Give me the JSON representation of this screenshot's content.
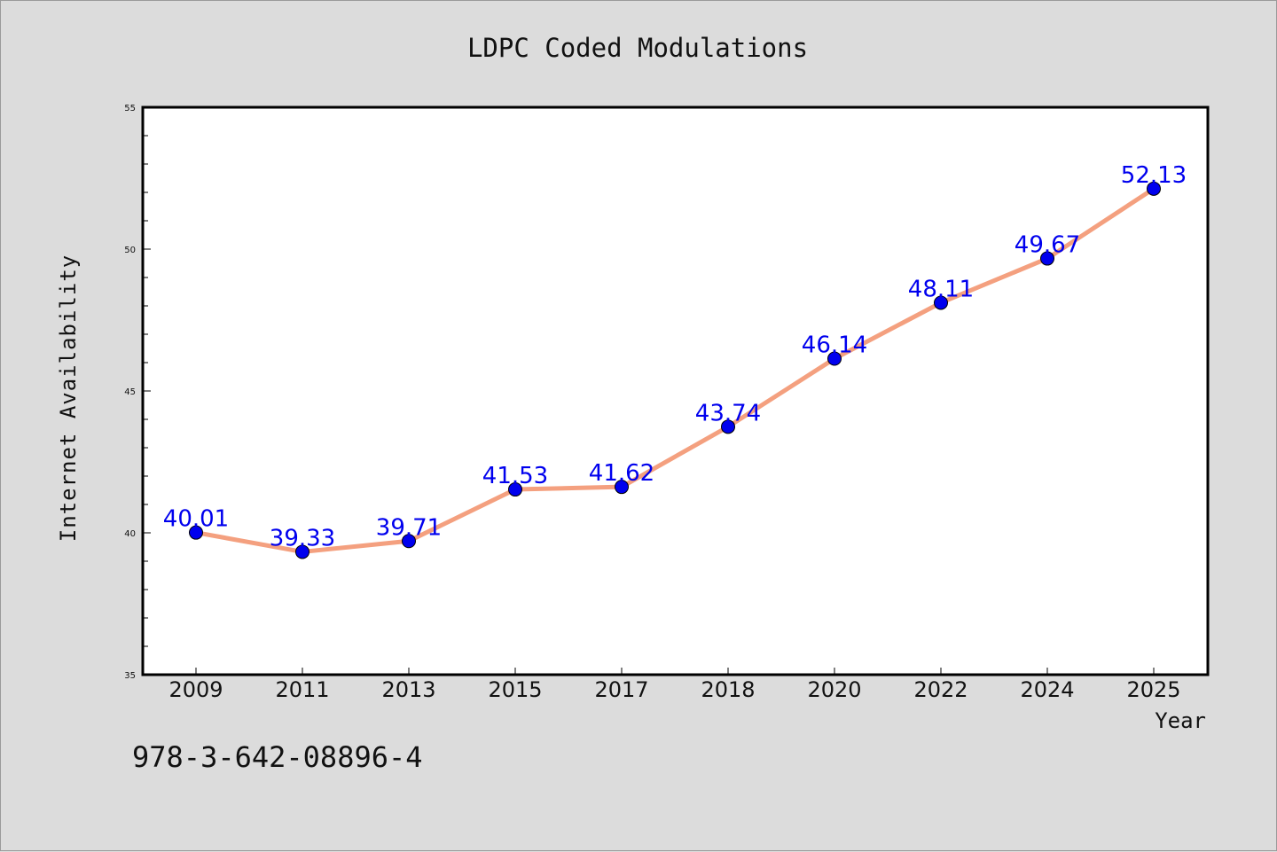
{
  "chart_data": {
    "type": "line",
    "title": "LDPC Coded Modulations",
    "xlabel": "Year",
    "ylabel": "Internet Availability",
    "categories": [
      "2009",
      "2011",
      "2013",
      "2015",
      "2017",
      "2018",
      "2020",
      "2022",
      "2024",
      "2025"
    ],
    "series": [
      {
        "values": [
          40.01,
          39.33,
          39.71,
          41.53,
          41.62,
          43.74,
          46.14,
          48.11,
          49.67,
          52.13
        ],
        "data_labels": [
          "40.01",
          "39.33",
          "39.71",
          "41.53",
          "41.62",
          "43.74",
          "46.14",
          "48.11",
          "49.67",
          "52.13"
        ],
        "line_color": "#f4a07f",
        "marker_color": "#0000ee",
        "label_color": "#0000ee"
      }
    ],
    "ylim": [
      35,
      55
    ],
    "y_ticks": [
      35,
      40,
      45,
      50,
      55
    ],
    "y_tick_labels": [
      "35",
      "40",
      "45",
      "50",
      "55"
    ],
    "grid": false,
    "legend": "none"
  },
  "footnote": "978-3-642-08896-4",
  "colors": {
    "background": "#dcdcdc",
    "plot_background": "#ffffff",
    "axis": "#000000"
  }
}
